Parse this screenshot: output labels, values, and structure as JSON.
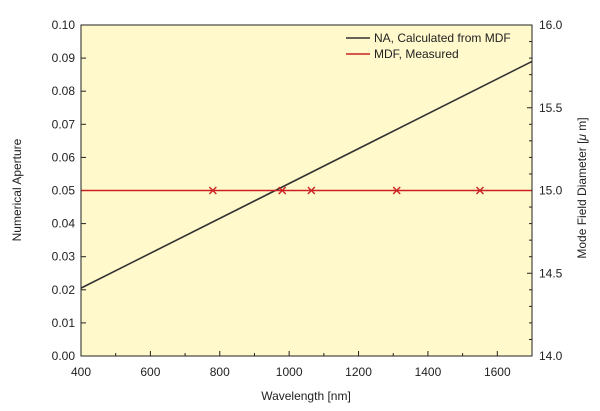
{
  "chart_data": {
    "type": "line",
    "xlabel": "Wavelength [nm]",
    "ylabel": "Numerical Aperture",
    "y2label": "Mode Field Diameter [",
    "y2label_mu": "μ",
    "y2label_unit": " m]",
    "xlim": [
      400,
      1700
    ],
    "ylim": [
      0.0,
      0.1
    ],
    "y2lim": [
      14.0,
      16.0
    ],
    "x_ticks": [
      400,
      600,
      800,
      1000,
      1200,
      1400,
      1600
    ],
    "y_ticks": [
      "0.00",
      "0.01",
      "0.02",
      "0.03",
      "0.04",
      "0.05",
      "0.06",
      "0.07",
      "0.08",
      "0.09",
      "0.10"
    ],
    "y2_ticks": [
      "14.0",
      "14.5",
      "15.0",
      "15.5",
      "16.0"
    ],
    "grid": false,
    "legend_position": "top-right",
    "series": [
      {
        "name": "NA, Calculated from MDF",
        "axis": "left",
        "x": [
          400,
          1700
        ],
        "y": [
          0.0205,
          0.089
        ]
      },
      {
        "name": "MDF, Measured",
        "axis": "right",
        "x": [
          400,
          1700
        ],
        "y": [
          15.0,
          15.0
        ],
        "markers": {
          "x": [
            780,
            980,
            1064,
            1310,
            1550
          ],
          "y": [
            15.0,
            15.0,
            15.0,
            15.0,
            15.0
          ]
        }
      }
    ],
    "colors": {
      "plot_background": "#fff9cc",
      "na_line": "#333333",
      "mdf_line": "#cc2222"
    }
  }
}
